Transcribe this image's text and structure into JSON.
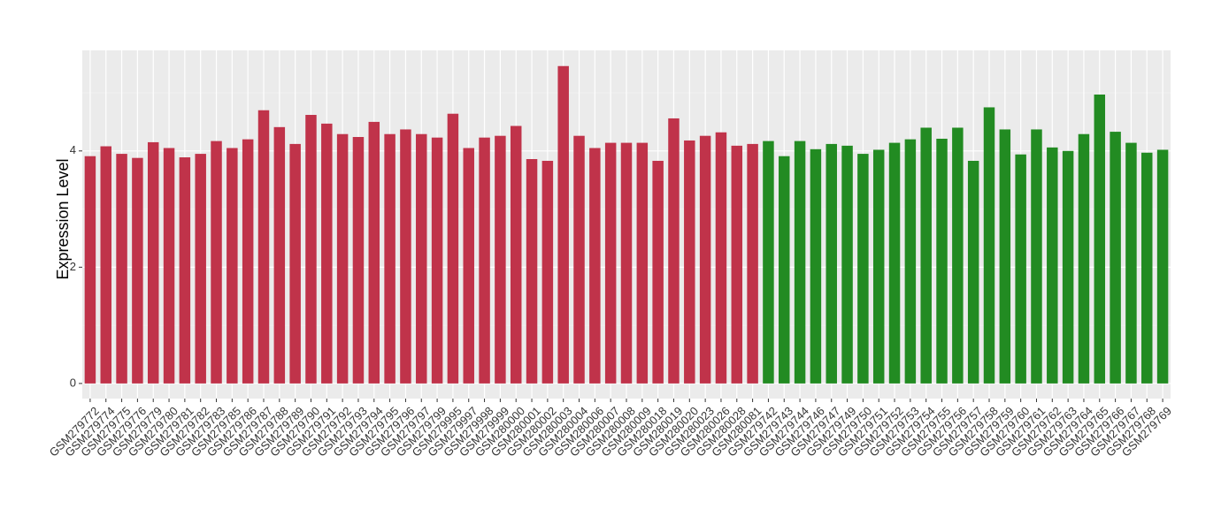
{
  "chart_data": {
    "type": "bar",
    "y_label": "Expression Level",
    "categories": [
      "GSM279772",
      "GSM279774",
      "GSM279775",
      "GSM279776",
      "GSM279779",
      "GSM279780",
      "GSM279781",
      "GSM279782",
      "GSM279783",
      "GSM279785",
      "GSM279786",
      "GSM279787",
      "GSM279788",
      "GSM279789",
      "GSM279790",
      "GSM279791",
      "GSM279792",
      "GSM279793",
      "GSM279794",
      "GSM279795",
      "GSM279796",
      "GSM279797",
      "GSM279799",
      "GSM279995",
      "GSM279997",
      "GSM279998",
      "GSM279999",
      "GSM280000",
      "GSM280001",
      "GSM280002",
      "GSM280003",
      "GSM280004",
      "GSM280006",
      "GSM280007",
      "GSM280008",
      "GSM280009",
      "GSM280018",
      "GSM280019",
      "GSM280020",
      "GSM280023",
      "GSM280026",
      "GSM280028",
      "GSM280081",
      "GSM279742",
      "GSM279743",
      "GSM279744",
      "GSM279746",
      "GSM279747",
      "GSM279749",
      "GSM279750",
      "GSM279751",
      "GSM279752",
      "GSM279753",
      "GSM279754",
      "GSM279755",
      "GSM279756",
      "GSM279757",
      "GSM279758",
      "GSM279759",
      "GSM279760",
      "GSM279761",
      "GSM279762",
      "GSM279763",
      "GSM279764",
      "GSM279765",
      "GSM279766",
      "GSM279767",
      "GSM279768",
      "GSM279769"
    ],
    "values": [
      3.91,
      4.08,
      3.95,
      3.88,
      4.15,
      4.05,
      3.89,
      3.95,
      4.17,
      4.05,
      4.2,
      4.7,
      4.41,
      4.12,
      4.62,
      4.47,
      4.29,
      4.24,
      4.5,
      4.29,
      4.37,
      4.29,
      4.23,
      4.64,
      4.05,
      4.23,
      4.26,
      4.43,
      3.86,
      3.83,
      5.46,
      4.26,
      4.05,
      4.14,
      4.14,
      4.14,
      3.83,
      4.56,
      4.18,
      4.26,
      4.32,
      4.09,
      4.12,
      4.17,
      3.91,
      4.17,
      4.03,
      4.12,
      4.09,
      3.95,
      4.02,
      4.14,
      4.2,
      4.4,
      4.21,
      4.4,
      3.83,
      4.75,
      4.37,
      3.94,
      4.37,
      4.06,
      4.0,
      4.29,
      4.97,
      4.33,
      4.14,
      3.97,
      4.02
    ],
    "colors": [
      "#c0334a",
      "#c0334a",
      "#c0334a",
      "#c0334a",
      "#c0334a",
      "#c0334a",
      "#c0334a",
      "#c0334a",
      "#c0334a",
      "#c0334a",
      "#c0334a",
      "#c0334a",
      "#c0334a",
      "#c0334a",
      "#c0334a",
      "#c0334a",
      "#c0334a",
      "#c0334a",
      "#c0334a",
      "#c0334a",
      "#c0334a",
      "#c0334a",
      "#c0334a",
      "#c0334a",
      "#c0334a",
      "#c0334a",
      "#c0334a",
      "#c0334a",
      "#c0334a",
      "#c0334a",
      "#c0334a",
      "#c0334a",
      "#c0334a",
      "#c0334a",
      "#c0334a",
      "#c0334a",
      "#c0334a",
      "#c0334a",
      "#c0334a",
      "#c0334a",
      "#c0334a",
      "#c0334a",
      "#c0334a",
      "#228b22",
      "#228b22",
      "#228b22",
      "#228b22",
      "#228b22",
      "#228b22",
      "#228b22",
      "#228b22",
      "#228b22",
      "#228b22",
      "#228b22",
      "#228b22",
      "#228b22",
      "#228b22",
      "#228b22",
      "#228b22",
      "#228b22",
      "#228b22",
      "#228b22",
      "#228b22",
      "#228b22",
      "#228b22",
      "#228b22",
      "#228b22",
      "#228b22",
      "#228b22"
    ],
    "ylim": [
      -0.26,
      5.73
    ],
    "yticks": [
      0,
      2,
      4
    ],
    "minor_yticks": [
      1,
      3,
      5
    ],
    "grid": true
  }
}
